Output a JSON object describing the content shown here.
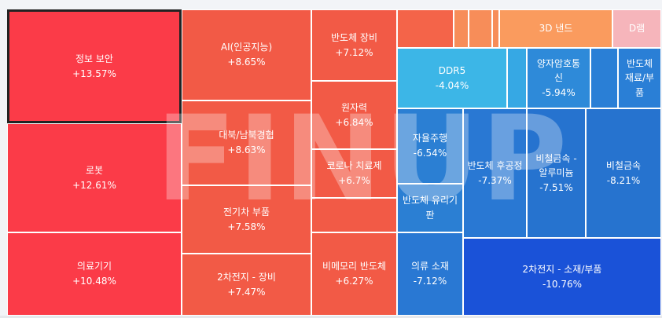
{
  "theme": {
    "red": "#f5474e",
    "orange_red": "#f26147",
    "orange": "#f57d5a",
    "light_orange": "#f8995c",
    "pink": "#f5b6bb",
    "light_blue": "#3cb6e6",
    "blue": "#2f86d6",
    "mid_blue": "#2673cf",
    "deep_blue": "#1a52d8"
  },
  "watermark": {
    "text": "FINUP"
  },
  "tiles": [
    {
      "id": "info-security",
      "name": "정보 보안",
      "change": "+13.57%",
      "color": "#fb3b48",
      "selected": true
    },
    {
      "id": "robot",
      "name": "로봇",
      "change": "+12.61%",
      "color": "#fb3b48"
    },
    {
      "id": "medical-device",
      "name": "의료기기",
      "change": "+10.48%",
      "color": "#fb3b48"
    },
    {
      "id": "ai",
      "name": "AI(인공지능)",
      "change": "+8.65%",
      "color": "#f25a46"
    },
    {
      "id": "north-korea",
      "name": "대북/남북경협",
      "change": "+8.63%",
      "color": "#f25a46"
    },
    {
      "id": "ev-parts",
      "name": "전기차 부품",
      "change": "+7.58%",
      "color": "#f25a46"
    },
    {
      "id": "battery-equip",
      "name": "2차전지 - 장비",
      "change": "+7.47%",
      "color": "#f25a46"
    },
    {
      "id": "semi-equip",
      "name": "반도체 장비",
      "change": "+7.12%",
      "color": "#f25a46"
    },
    {
      "id": "nuclear",
      "name": "원자력",
      "change": "+6.84%",
      "color": "#f25a46"
    },
    {
      "id": "covid",
      "name": "코로나 치료제",
      "change": "+6.7%",
      "color": "#f25a46"
    },
    {
      "id": "non-memory",
      "name": "비메모리 반도체",
      "change": "+6.27%",
      "color": "#f25a46"
    },
    {
      "id": "small-1",
      "name": "",
      "change": "",
      "color": "#f46449"
    },
    {
      "id": "small-2",
      "name": "",
      "change": "",
      "color": "#f78d59"
    },
    {
      "id": "small-3",
      "name": "",
      "change": "",
      "color": "#f78d59"
    },
    {
      "id": "small-4",
      "name": "",
      "change": "",
      "color": "#f78d59"
    },
    {
      "id": "small-5",
      "name": "",
      "change": "",
      "color": "#f78d59"
    },
    {
      "id": "3d-nand",
      "name": "3D 낸드",
      "change": "",
      "color": "#fa9b5e"
    },
    {
      "id": "dram",
      "name": "D램",
      "change": "",
      "color": "#f6b5bb"
    },
    {
      "id": "ddr5",
      "name": "DDR5",
      "change": "-4.04%",
      "color": "#3cb6e7"
    },
    {
      "id": "small-6",
      "name": "",
      "change": "",
      "color": "#36a8e4"
    },
    {
      "id": "quantum",
      "name": "양자암호통신",
      "change": "-5.94%",
      "color": "#2e8ad9"
    },
    {
      "id": "small-7",
      "name": "",
      "change": "",
      "color": "#2a7fd6"
    },
    {
      "id": "semi-material",
      "name": "반도체 재료/부품",
      "change": "",
      "color": "#2a7fd6"
    },
    {
      "id": "autonomous",
      "name": "자율주행",
      "change": "-6.54%",
      "color": "#2b7fd3"
    },
    {
      "id": "semi-glass",
      "name": "반도체 유리기판",
      "change": "",
      "color": "#2b7fd3"
    },
    {
      "id": "semi-backend",
      "name": "반도체 후공정",
      "change": "-7.37%",
      "color": "#2978d3"
    },
    {
      "id": "non-ferrous-al",
      "name": "비철금속 - 알루미늄",
      "change": "-7.51%",
      "color": "#2673cf"
    },
    {
      "id": "non-ferrous",
      "name": "비철금속",
      "change": "-8.21%",
      "color": "#2673cf"
    },
    {
      "id": "textile",
      "name": "의류 소재",
      "change": "-7.12%",
      "color": "#2978d3"
    },
    {
      "id": "battery-material",
      "name": "2차전지 - 소재/부품",
      "change": "-10.76%",
      "color": "#1a52d8"
    },
    {
      "id": "misc-1",
      "name": "",
      "change": "",
      "color": "#f25a46"
    },
    {
      "id": "misc-2",
      "name": "",
      "change": "",
      "color": "#f25a46"
    },
    {
      "id": "misc-3",
      "name": "",
      "change": "",
      "color": "#2b7fd3"
    }
  ]
}
